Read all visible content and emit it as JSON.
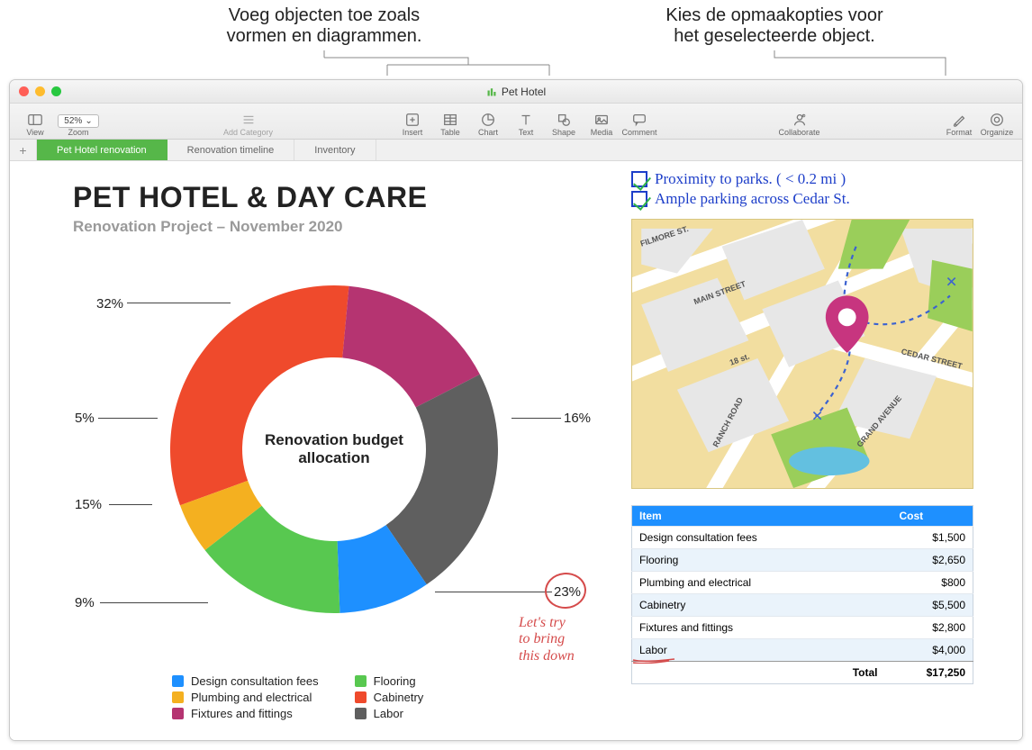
{
  "callouts": {
    "left": "Voeg objecten toe zoals\nvormen en diagrammen.",
    "right": "Kies de opmaakopties voor\nhet geselecteerde object."
  },
  "window": {
    "title": "Pet Hotel",
    "traffic_colors": [
      "#ff5f57",
      "#febc2e",
      "#28c840"
    ]
  },
  "toolbar": {
    "view": "View",
    "zoom_label": "Zoom",
    "zoom_value": "52%",
    "add_category": "Add Category",
    "insert": "Insert",
    "table": "Table",
    "chart": "Chart",
    "text": "Text",
    "shape": "Shape",
    "media": "Media",
    "comment": "Comment",
    "collaborate": "Collaborate",
    "format": "Format",
    "organize": "Organize"
  },
  "sheets": {
    "active": "Pet Hotel renovation",
    "others": [
      "Renovation timeline",
      "Inventory"
    ]
  },
  "title_block": {
    "title": "PET HOTEL & DAY CARE",
    "subtitle": "Renovation Project – November 2020"
  },
  "donut": {
    "center_label": "Renovation budget allocation",
    "slices": [
      {
        "label": "Design consultation fees",
        "pct": 9,
        "color": "#1e90ff"
      },
      {
        "label": "Flooring",
        "pct": 15,
        "color": "#58c850"
      },
      {
        "label": "Plumbing and electrical",
        "pct": 5,
        "color": "#f4b020"
      },
      {
        "label": "Cabinetry",
        "pct": 32,
        "color": "#ef4a2c"
      },
      {
        "label": "Fixtures and fittings",
        "pct": 16,
        "color": "#b53471"
      },
      {
        "label": "Labor",
        "pct": 23,
        "color": "#5f5f5f"
      }
    ],
    "annotation": {
      "circle_color": "#d54b4b",
      "text": "Let's try\nto bring\nthis down"
    }
  },
  "checklist": {
    "items": [
      "Proximity to parks. ( < 0.2 mi )",
      "Ample parking across  Cedar St."
    ],
    "text_color": "#1d3ec9",
    "check_color": "#2fb24a"
  },
  "map": {
    "bg_color": "#f2dea0",
    "block_color": "#e7e7e7",
    "park_color": "#9ace5a",
    "water_color": "#63c0e0",
    "road_color": "#ffffff",
    "pin_color": "#c7357f",
    "path_color": "#3b62d1",
    "streets": [
      "FILMORE ST.",
      "MAIN STREET",
      "RANCH ROAD",
      "GRAND AVENUE",
      "CEDAR STREET",
      "18 st."
    ]
  },
  "cost_table": {
    "header_bg": "#1e90ff",
    "alt_row_bg": "#eaf3fb",
    "columns": [
      "Item",
      "Cost"
    ],
    "rows": [
      [
        "Design consultation fees",
        "$1,500"
      ],
      [
        "Flooring",
        "$2,650"
      ],
      [
        "Plumbing and electrical",
        "$800"
      ],
      [
        "Cabinetry",
        "$5,500"
      ],
      [
        "Fixtures and fittings",
        "$2,800"
      ],
      [
        "Labor",
        "$4,000"
      ]
    ],
    "total_label": "Total",
    "total_value": "$17,250",
    "labor_underline_color": "#d54b4b"
  }
}
